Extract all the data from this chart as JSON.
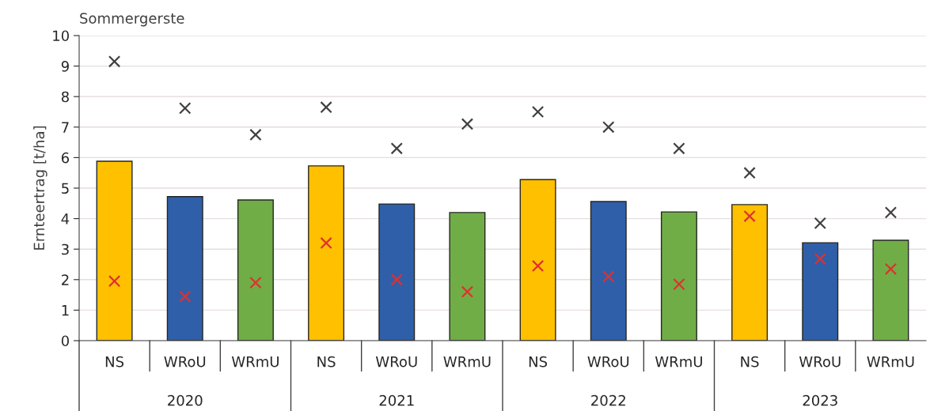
{
  "chart_data": {
    "type": "bar",
    "title": "Sommergerste",
    "ylabel": "Ernteertrag [t/ha]",
    "categories": [
      "NS",
      "WRoU",
      "WRmU",
      "NS",
      "WRoU",
      "WRmU",
      "NS",
      "WRoU",
      "WRmU",
      "NS",
      "WRoU",
      "WRmU"
    ],
    "annotations": [
      "2020",
      "2021",
      "2022",
      "2023"
    ],
    "series": [
      {
        "values": [
          5.88,
          4.72,
          4.61,
          5.73,
          4.48,
          4.2,
          5.28,
          4.56,
          4.22,
          4.46,
          3.21,
          3.29
        ],
        "colors": [
          "#ffc000",
          "#2f5fa8",
          "#70ad47",
          "#ffc000",
          "#2f5fa8",
          "#70ad47",
          "#ffc000",
          "#2f5fa8",
          "#70ad47",
          "#ffc000",
          "#2f5fa8",
          "#70ad47"
        ]
      },
      {
        "type": "scatter",
        "color": "#404040",
        "marker": "cross",
        "values": [
          9.15,
          7.62,
          6.75,
          7.65,
          6.3,
          7.1,
          7.5,
          7.0,
          6.3,
          5.5,
          3.85,
          4.2
        ]
      },
      {
        "type": "scatter",
        "color": "#e03030",
        "marker": "cross",
        "values": [
          1.95,
          1.45,
          1.9,
          3.2,
          2.0,
          1.6,
          2.45,
          2.1,
          1.85,
          4.08,
          2.68,
          2.35
        ]
      }
    ],
    "ylim": [
      0,
      10
    ],
    "yticks": [
      0,
      1,
      2,
      3,
      4,
      5,
      6,
      7,
      8,
      9,
      10
    ],
    "grid": "y",
    "legend": false
  }
}
